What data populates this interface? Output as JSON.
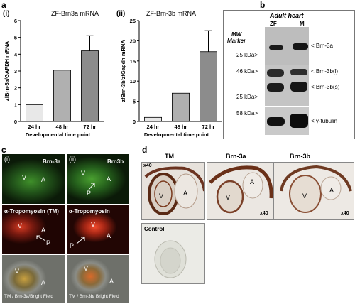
{
  "panel_a": {
    "label": "a",
    "charts": [
      {
        "sub_label": "(i)",
        "title": "ZF-Brn3a mRNA",
        "ylabel": "zfBrn-3a/GAPDH mRNA",
        "y_ticks": [
          "0",
          "1",
          "2",
          "3",
          "4",
          "5",
          "6"
        ],
        "x_tick_labels": [
          "24 hr",
          "48 hr",
          "72 hr"
        ],
        "xlabel": "Developmental  time point"
      },
      {
        "sub_label": "(ii)",
        "title": "ZF-Brn-3b mRNA",
        "ylabel": "zfBrn-3b/zfGapdh mRNA",
        "y_ticks": [
          "0",
          "5",
          "10",
          "15",
          "20",
          "25"
        ],
        "x_tick_labels": [
          "24 hr",
          "48 hr",
          "72 hr"
        ],
        "xlabel": "Developmental  time point"
      }
    ]
  },
  "chart_data": [
    {
      "type": "bar",
      "categories": [
        "24 hr",
        "48 hr",
        "72 hr"
      ],
      "values": [
        1.0,
        3.05,
        4.2
      ],
      "error": [
        0,
        0,
        0.9
      ],
      "colors": [
        "#e8e8e8",
        "#b0b0b0",
        "#8c8c8c"
      ],
      "title": "ZF-Brn3a mRNA",
      "xlabel": "Developmental  time point",
      "ylabel": "zfBrn-3a/GAPDH mRNA",
      "ylim": [
        0,
        6
      ]
    },
    {
      "type": "bar",
      "categories": [
        "24 hr",
        "48 hr",
        "72 hr"
      ],
      "values": [
        1.0,
        7.0,
        17.3
      ],
      "error": [
        0,
        0,
        5.2
      ],
      "colors": [
        "#e8e8e8",
        "#b0b0b0",
        "#8c8c8c"
      ],
      "title": "ZF-Brn-3b mRNA",
      "xlabel": "Developmental  time point",
      "ylabel": "zfBrn-3b/zfGapdh mRNA",
      "ylim": [
        0,
        25
      ]
    }
  ],
  "panel_b": {
    "label": "b",
    "header": "Adult heart",
    "mw_marker": [
      "MW",
      "Marker"
    ],
    "lanes": [
      "ZF",
      "M"
    ],
    "markers": [
      "25 kDa>",
      "46 kDa>",
      "25 kDa>",
      "58 kDa>"
    ],
    "bands": [
      "< Brn-3a",
      "< Brn-3b(l)",
      "< Brn-3b(s)",
      "< γ-tubulin"
    ]
  },
  "panel_c": {
    "label": "c",
    "col_labels": [
      "(i)",
      "(ii)"
    ],
    "green_labels": [
      "Brn-3a",
      "Brn3b"
    ],
    "red_labels": [
      "α-Tropomyosin (TM)",
      "α-Tropomyosin"
    ],
    "bright_captions": [
      "TM / Brn-3a/Bright Field",
      "TM / Brn-3b/ Bright Field"
    ],
    "markers": {
      "V": "V",
      "A": "A",
      "P": "P"
    }
  },
  "panel_d": {
    "label": "d",
    "col_titles": [
      "TM",
      "Brn-3a",
      "Brn-3b"
    ],
    "magnification": "x40",
    "control": "Control",
    "markers": {
      "V": "V",
      "A": "A"
    }
  }
}
